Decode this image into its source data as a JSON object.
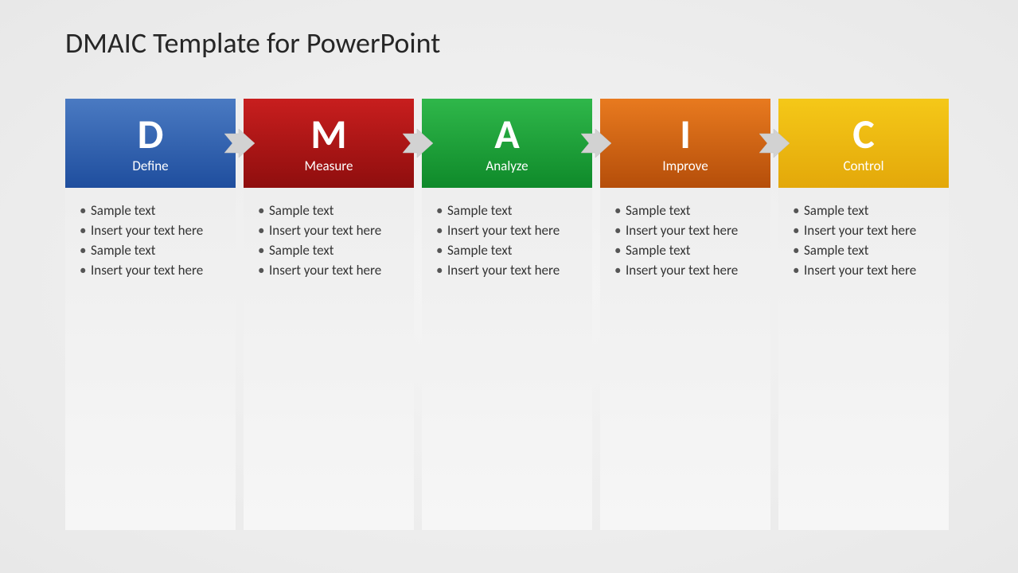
{
  "slide": {
    "title": "DMAIC Template for PowerPoint",
    "title_fontsize": 36,
    "title_color": "#262626",
    "background_gradient": [
      "#f5f5f5",
      "#e8e8e8"
    ]
  },
  "arrow": {
    "fill": "#d2d2d2",
    "stroke": "#bfbfbf"
  },
  "body_bg_gradient": [
    "#eeeeee",
    "#f6f6f6"
  ],
  "bullet_color": "#333333",
  "stages": [
    {
      "letter": "D",
      "label": "Define",
      "header_gradient": [
        "#4a7ac2",
        "#1f4e9e"
      ],
      "bullets": [
        "Sample text",
        "Insert your text here",
        "Sample text",
        "Insert your text here"
      ]
    },
    {
      "letter": "M",
      "label": "Measure",
      "header_gradient": [
        "#c81e1e",
        "#8f0e0e"
      ],
      "bullets": [
        "Sample text",
        "Insert your text here",
        "Sample text",
        "Insert your text here"
      ]
    },
    {
      "letter": "A",
      "label": "Analyze",
      "header_gradient": [
        "#2fb74a",
        "#0f8a2a"
      ],
      "bullets": [
        "Sample text",
        "Insert your text here",
        "Sample text",
        "Insert your text here"
      ]
    },
    {
      "letter": "I",
      "label": "Improve",
      "header_gradient": [
        "#e87a1f",
        "#b54e0a"
      ],
      "bullets": [
        "Sample text",
        "Insert your text here",
        "Sample text",
        "Insert your text here"
      ]
    },
    {
      "letter": "C",
      "label": "Control",
      "header_gradient": [
        "#f5c818",
        "#e3a80a"
      ],
      "bullets": [
        "Sample text",
        "Insert your text here",
        "Sample text",
        "Insert your text here"
      ]
    }
  ]
}
